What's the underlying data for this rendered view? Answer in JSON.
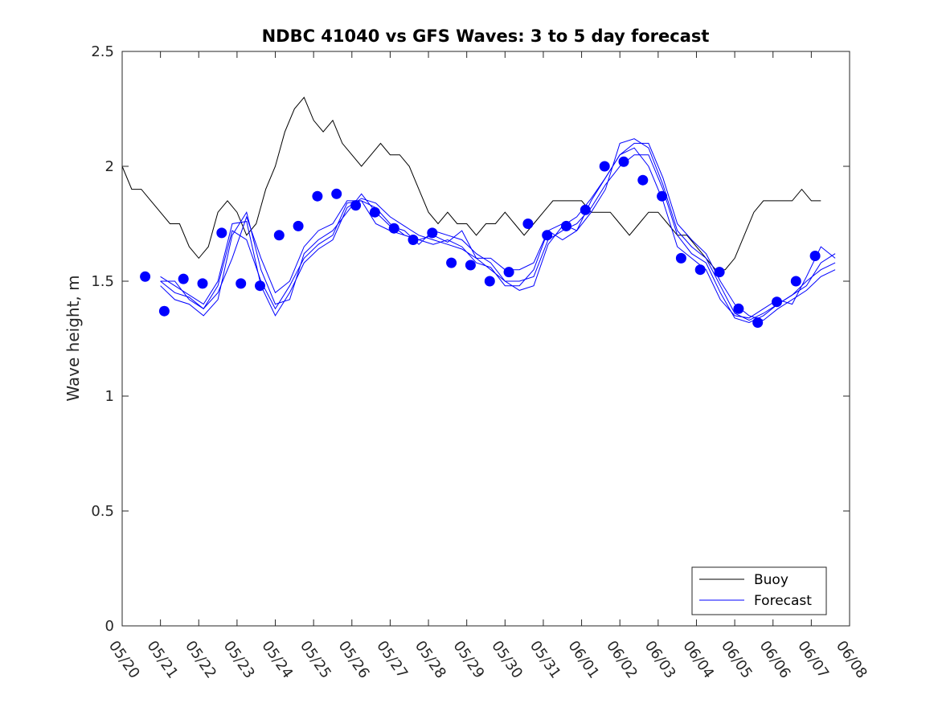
{
  "chart_data": {
    "type": "line",
    "title": "NDBC 41040 vs GFS Waves: 3 to 5 day forecast",
    "xlabel": "",
    "ylabel": "Wave height, m",
    "xlim": [
      0,
      19
    ],
    "ylim": [
      0,
      2.5
    ],
    "x_tick_labels": [
      "05/20",
      "05/21",
      "05/22",
      "05/23",
      "05/24",
      "05/25",
      "05/26",
      "05/27",
      "05/28",
      "05/29",
      "05/30",
      "05/31",
      "06/01",
      "06/02",
      "06/03",
      "06/04",
      "06/05",
      "06/06",
      "06/07",
      "06/08"
    ],
    "y_ticks": [
      0,
      0.5,
      1,
      1.5,
      2,
      2.5
    ],
    "y_tick_labels": [
      "0",
      "0.5",
      "1",
      "1.5",
      "2",
      "2.5"
    ],
    "grid": false,
    "legend": {
      "placement": "bottom-right",
      "entries": [
        "Buoy",
        "Forecast"
      ]
    },
    "colors": {
      "buoy": "#000000",
      "forecast": "#0000ff"
    },
    "buoy": {
      "x": [
        0,
        0.25,
        0.5,
        0.75,
        1,
        1.25,
        1.5,
        1.75,
        2,
        2.25,
        2.5,
        2.75,
        3,
        3.25,
        3.5,
        3.75,
        4,
        4.25,
        4.5,
        4.75,
        5,
        5.25,
        5.5,
        5.75,
        6,
        6.25,
        6.5,
        6.75,
        7,
        7.25,
        7.5,
        7.75,
        8,
        8.25,
        8.5,
        8.75,
        9,
        9.25,
        9.5,
        9.75,
        10,
        10.25,
        10.5,
        10.75,
        11,
        11.25,
        11.5,
        11.75,
        12,
        12.25,
        12.5,
        12.75,
        13,
        13.25,
        13.5,
        13.75,
        14,
        14.25,
        14.5,
        14.75,
        15,
        15.25,
        15.5,
        15.75,
        16,
        16.25,
        16.5,
        16.75,
        17,
        17.25,
        17.5,
        17.75,
        18,
        18.25
      ],
      "y": [
        2.0,
        1.9,
        1.9,
        1.85,
        1.8,
        1.75,
        1.75,
        1.65,
        1.6,
        1.65,
        1.8,
        1.85,
        1.8,
        1.7,
        1.75,
        1.9,
        2.0,
        2.15,
        2.25,
        2.3,
        2.2,
        2.15,
        2.2,
        2.1,
        2.05,
        2.0,
        2.05,
        2.1,
        2.05,
        2.05,
        2.0,
        1.9,
        1.8,
        1.75,
        1.8,
        1.75,
        1.75,
        1.7,
        1.75,
        1.75,
        1.8,
        1.75,
        1.7,
        1.75,
        1.8,
        1.85,
        1.85,
        1.85,
        1.85,
        1.8,
        1.8,
        1.8,
        1.75,
        1.7,
        1.75,
        1.8,
        1.8,
        1.75,
        1.7,
        1.7,
        1.65,
        1.6,
        1.55,
        1.55,
        1.6,
        1.7,
        1.8,
        1.85,
        1.85,
        1.85,
        1.85,
        1.9,
        1.85,
        1.85
      ]
    },
    "forecast_points": {
      "x": [
        0.6,
        1.1,
        1.6,
        2.1,
        2.6,
        3.1,
        3.6,
        4.1,
        4.6,
        5.1,
        5.6,
        6.1,
        6.6,
        7.1,
        7.6,
        8.1,
        8.6,
        9.1,
        9.6,
        10.1,
        10.6,
        11.1,
        11.6,
        12.1,
        12.6,
        13.1,
        13.6,
        14.1,
        14.6,
        15.1,
        15.6,
        16.1,
        16.6,
        17.1,
        17.6,
        18.1
      ],
      "y": [
        1.52,
        1.37,
        1.51,
        1.49,
        1.71,
        1.49,
        1.48,
        1.7,
        1.74,
        1.87,
        1.88,
        1.83,
        1.8,
        1.73,
        1.68,
        1.71,
        1.58,
        1.57,
        1.5,
        1.54,
        1.75,
        1.7,
        1.74,
        1.81,
        2.0,
        2.02,
        1.94,
        1.87,
        1.6,
        1.55,
        1.54,
        1.38,
        1.32,
        1.41,
        1.5,
        1.61
      ]
    },
    "forecast_lines": [
      [
        1.5,
        1.5,
        1.42,
        1.38,
        1.45,
        1.6,
        1.78,
        1.6,
        1.45,
        1.5,
        1.65,
        1.72,
        1.75,
        1.85,
        1.85,
        1.75,
        1.72,
        1.7,
        1.68,
        1.7,
        1.67,
        1.72,
        1.6,
        1.6,
        1.55,
        1.55,
        1.58,
        1.72,
        1.68,
        1.72,
        1.85,
        1.95,
        2.05,
        2.08,
        2.0,
        1.85,
        1.65,
        1.6,
        1.55,
        1.42,
        1.35,
        1.34,
        1.38,
        1.42,
        1.4,
        1.52,
        1.65,
        1.6
      ],
      [
        1.48,
        1.42,
        1.4,
        1.35,
        1.42,
        1.7,
        1.8,
        1.55,
        1.4,
        1.42,
        1.62,
        1.68,
        1.72,
        1.8,
        1.88,
        1.8,
        1.74,
        1.72,
        1.66,
        1.72,
        1.7,
        1.68,
        1.62,
        1.58,
        1.5,
        1.5,
        1.52,
        1.68,
        1.72,
        1.75,
        1.82,
        1.92,
        2.0,
        2.05,
        2.05,
        1.9,
        1.7,
        1.62,
        1.58,
        1.45,
        1.34,
        1.32,
        1.35,
        1.4,
        1.44,
        1.48,
        1.58,
        1.62
      ],
      [
        1.5,
        1.45,
        1.43,
        1.38,
        1.48,
        1.72,
        1.68,
        1.5,
        1.38,
        1.48,
        1.6,
        1.66,
        1.7,
        1.84,
        1.85,
        1.82,
        1.75,
        1.7,
        1.68,
        1.66,
        1.68,
        1.65,
        1.58,
        1.56,
        1.48,
        1.48,
        1.55,
        1.72,
        1.75,
        1.72,
        1.8,
        1.9,
        2.1,
        2.12,
        2.08,
        1.92,
        1.72,
        1.65,
        1.6,
        1.48,
        1.36,
        1.33,
        1.36,
        1.4,
        1.44,
        1.5,
        1.55,
        1.58
      ],
      [
        1.52,
        1.48,
        1.44,
        1.4,
        1.5,
        1.75,
        1.76,
        1.48,
        1.35,
        1.45,
        1.58,
        1.64,
        1.68,
        1.82,
        1.86,
        1.84,
        1.78,
        1.74,
        1.7,
        1.68,
        1.66,
        1.64,
        1.6,
        1.55,
        1.5,
        1.46,
        1.48,
        1.66,
        1.74,
        1.78,
        1.86,
        1.95,
        2.05,
        2.1,
        2.1,
        1.95,
        1.75,
        1.68,
        1.62,
        1.5,
        1.4,
        1.35,
        1.33,
        1.38,
        1.42,
        1.46,
        1.52,
        1.55
      ]
    ],
    "forecast_lines_xstart": 1.0,
    "forecast_lines_xstep": 0.375
  }
}
